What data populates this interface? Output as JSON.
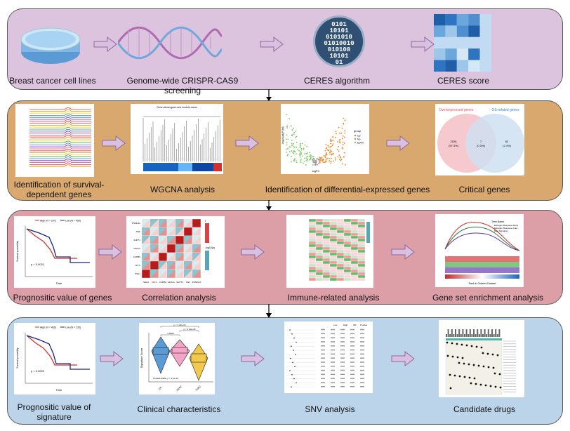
{
  "colors": {
    "row1": "#dcc4de",
    "row2": "#d8a86e",
    "row3": "#dc9fa8",
    "row4": "#bcd4ea",
    "arrow_fill": "#d9bfe0",
    "arrow_stroke": "#8a6a9a"
  },
  "row1": {
    "labels": [
      "Breast cancer cell lines",
      "Genome-wide CRISPR-CAS9 screening",
      "CERES algorithm",
      "CERES score"
    ],
    "binary": [
      "0101",
      "10101",
      "0101010",
      "01010010",
      "010100",
      "10101",
      "01"
    ]
  },
  "row2": {
    "labels": [
      "Identification of survival-dependent genes",
      "WGCNA analysis",
      "Identification of differential-expressed genes",
      "Critical genes"
    ],
    "wgcna_title": "Gene dendrogram and module colors",
    "volcano": {
      "xlabel": "logFC",
      "ylabel": "-log10(adj.P.Val)",
      "legend_title": "group",
      "legend": [
        "Up",
        "No",
        "Down"
      ]
    },
    "venn": {
      "left_title": "Overexpressed genes",
      "right_title": "OS-related genes",
      "left": "2028",
      "left_pct": "(97.3%)",
      "mid": "7",
      "mid_pct": "(0.3%)",
      "right": "63",
      "right_pct": "(2.4%)"
    }
  },
  "row3": {
    "labels": [
      "Prognositic value of genes",
      "Correlation analysis",
      "Immune-related analysis",
      "Gene set enrichment analysis"
    ],
    "km": {
      "high": "High (N = 207)",
      "low": "Low (N = 469)",
      "p": "p = 0.0021",
      "xlabel": "Time",
      "ylabel": "Survival probability"
    },
    "corr": {
      "genes": [
        "SSH1",
        "CLTC",
        "COPB2",
        "DNAJ1",
        "SUPT1",
        "NSF",
        "PSMD12"
      ],
      "legend_r": "r",
      "legend_p": "-log10(p)"
    },
    "gsea": {
      "legend_title": "Term Name",
      "terms": [
        "Estrogen Response Early",
        "Estrogen Response Late",
        "Mtor Signaling"
      ],
      "xlabel": "Rank in Ordered Dataset"
    }
  },
  "row4": {
    "labels": [
      "Prognositic value of signature",
      "Clinical characteristics",
      "SNV analysis",
      "Candidate drugs"
    ],
    "km": {
      "high": "High (N = 469)",
      "low": "Low (N = 233)",
      "p": "p = 0.0029",
      "xlabel": "Time",
      "ylabel": "Survival probability"
    },
    "violin": {
      "ylabel": "Signature Score",
      "groups": [
        "ER",
        "HER2",
        "TNBC"
      ],
      "p1": "p < 2.22e-16",
      "p2": "p < 2.22e-16",
      "p3": "0.0068",
      "test": "Kruskal-Wallis, p < 2.2e-16"
    },
    "snv": {
      "header": [
        "Low",
        "High",
        "OR",
        "P-value"
      ]
    }
  }
}
